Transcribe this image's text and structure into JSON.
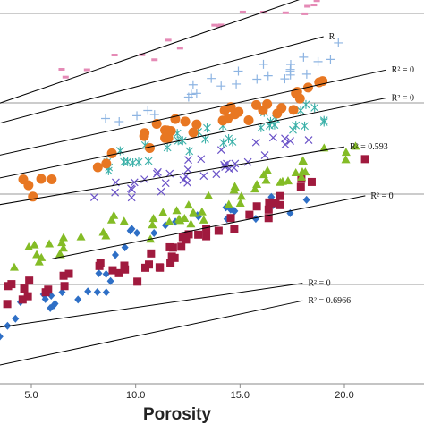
{
  "chart_data": {
    "type": "scatter",
    "title": "",
    "xlabel": "Porosity",
    "ylabel": "",
    "xlim": [
      3.0,
      22.0
    ],
    "ylim": [
      0,
      10
    ],
    "grid": "horizontal",
    "xticks": [
      "5.0",
      "10.0",
      "15.0",
      "20.0"
    ],
    "series": [
      {
        "marker": "diamond",
        "color": "#2E6FC6",
        "cloud": [
          [
            1.5,
            4.0,
            7.5,
            2.7,
            3.4,
            0.55,
            0.55
          ],
          [
            4.0,
            9.0,
            15.5,
            4.2,
            6.0,
            0.55,
            0.55
          ],
          [
            9.0,
            18.3,
            20,
            8.0,
            10.6,
            0.55,
            0.5
          ]
        ],
        "trend": [
          [
            3.0,
            1.0
          ],
          [
            18.0,
            4.8
          ]
        ],
        "r2": "R² = 0.6966"
      },
      {
        "marker": "square",
        "color": "#A01A3E",
        "cloud": [
          [
            2.5,
            9.0,
            16,
            4.6,
            6.8,
            0.55,
            0.5
          ],
          [
            9.0,
            17.5,
            32,
            6.0,
            10.6,
            0.5,
            0.5
          ],
          [
            17.0,
            21.0,
            4,
            10.8,
            12.7,
            0.5,
            0.4
          ]
        ],
        "trend": [
          [
            3.0,
            3.2
          ],
          [
            18.0,
            5.8
          ]
        ],
        "r2": "R² = 0"
      },
      {
        "marker": "triangle",
        "color": "#84BC26",
        "cloud": [
          [
            4.0,
            10.5,
            18,
            7.2,
            9.6,
            0.5,
            0.5
          ],
          [
            10.5,
            21.0,
            40,
            8.8,
            13.8,
            0.5,
            0.5
          ]
        ],
        "trend": [
          [
            6.0,
            7.2
          ],
          [
            21.0,
            10.8
          ]
        ],
        "r2": "R² = 0"
      },
      {
        "marker": "cross",
        "color": "#6A52C8",
        "cloud": [
          [
            8.0,
            18.5,
            36,
            10.5,
            14.5,
            0.5,
            0.55
          ]
        ],
        "trend": [
          [
            3.0,
            10.2
          ],
          [
            20.0,
            13.6
          ]
        ],
        "r2": "R² = 0.593"
      },
      {
        "marker": "asterisk",
        "color": "#3AB0A8",
        "cloud": [
          [
            8.5,
            19.5,
            36,
            12.8,
            15.8,
            0.5,
            0.55
          ]
        ],
        "trend": [
          [
            3.0,
            11.7
          ],
          [
            22.0,
            16.4
          ]
        ],
        "r2": "R² = 0"
      },
      {
        "marker": "circle",
        "color": "#E87722",
        "cloud": [
          [
            4.0,
            9.5,
            8,
            11.0,
            13.3,
            0.7,
            0.6
          ],
          [
            9.5,
            19.0,
            32,
            13.8,
            16.8,
            0.5,
            0.5
          ]
        ],
        "trend": [
          [
            3.0,
            13.0
          ],
          [
            22.0,
            18.0
          ]
        ],
        "r2": "R² = 0"
      },
      {
        "marker": "plus",
        "color": "#8DB4E2",
        "cloud": [
          [
            8.5,
            20.0,
            26,
            15.2,
            19.0,
            0.5,
            0.55
          ]
        ],
        "trend": [
          [
            3.0,
            14.8
          ],
          [
            19.0,
            19.9
          ]
        ],
        "r2": "R"
      },
      {
        "marker": "dash",
        "color": "#E58AB6",
        "cloud": [
          [
            5.0,
            19.0,
            20,
            17.0,
            22.0,
            0.5,
            0.55
          ]
        ],
        "trend": [
          [
            3.0,
            15.9
          ],
          [
            19.0,
            22.5
          ]
        ],
        "r2": "R² = 0."
      }
    ]
  }
}
